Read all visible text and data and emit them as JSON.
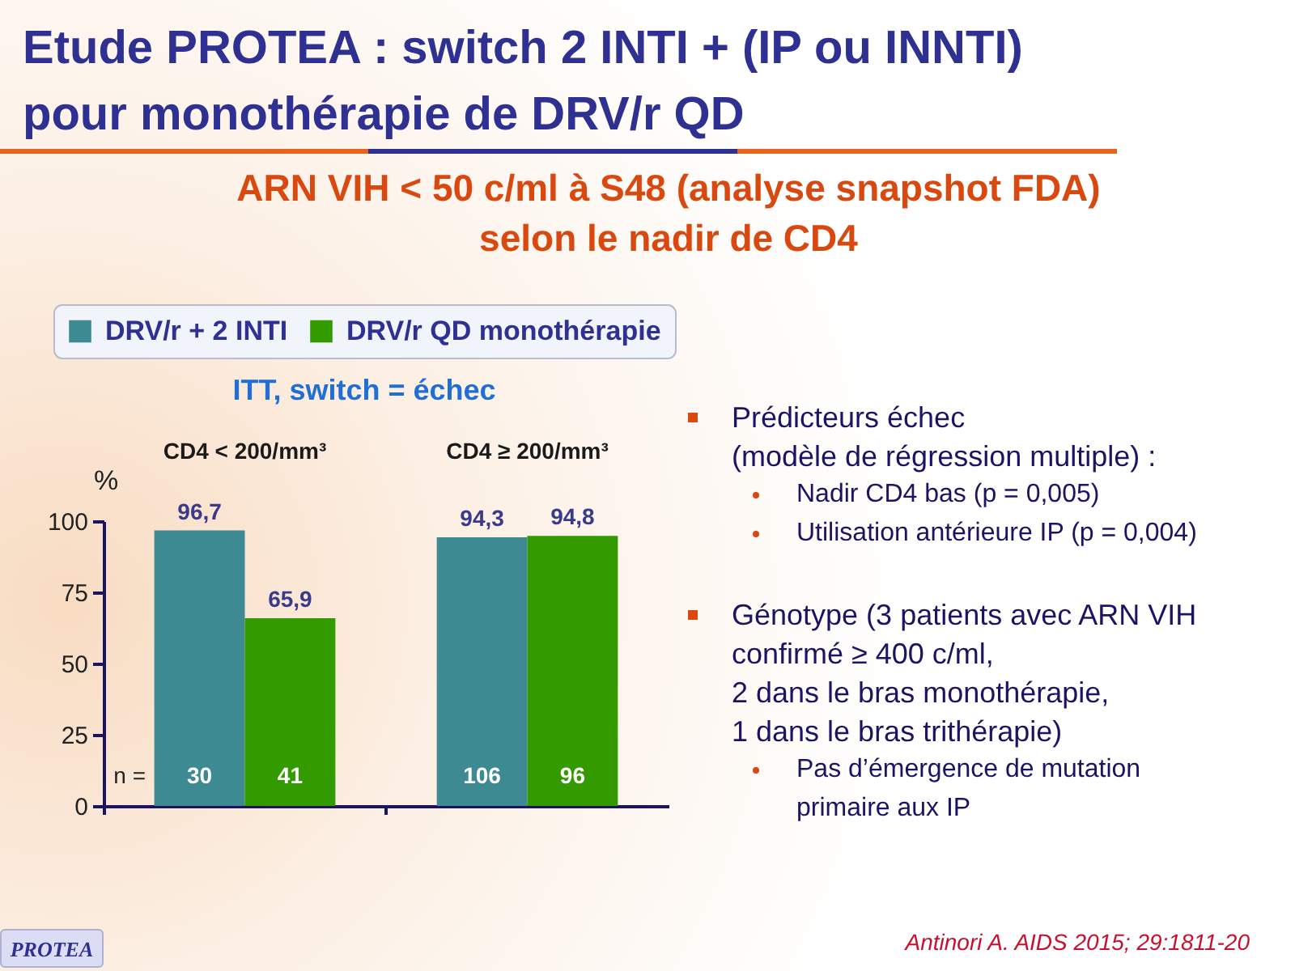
{
  "chart_data": {
    "type": "bar",
    "title": "Etude PROTEA : switch 2 INTI + (IP ou INNTI) pour monothérapie de DRV/r QD",
    "subtitle": "ARN VIH < 50 c/ml à S48 (analyse snapshot FDA) selon le nadir de CD4",
    "ylabel": "%",
    "categories": [
      "CD4 < 200/mm³",
      "CD4 ≥ 200/mm³"
    ],
    "series": [
      {
        "name": "DRV/r + 2 INTI",
        "color": "#3e8a92",
        "values": [
          96.7,
          94.3
        ],
        "value_labels": [
          "96,7",
          "94,3"
        ]
      },
      {
        "name": "DRV/r QD monothérapie",
        "color": "#339a00",
        "values": [
          65.9,
          94.8
        ],
        "value_labels": [
          "65,9",
          "94,8"
        ]
      }
    ],
    "ylim": [
      0,
      100
    ],
    "yticks": [
      0,
      25,
      50,
      75,
      100
    ],
    "grid": false,
    "legend": "top left",
    "annotations": [
      "ITT, switch = échec",
      "n =",
      "30",
      "41",
      "106",
      "96",
      "Prédicteurs échec\n(modèle de régression multiple) :",
      "Nadir CD4 bas (p = 0,005)",
      "Utilisation antérieure IP (p = 0,004)",
      "Génotype (3 patients avec ARN VIH\nconfirmé ≥ 400 c/ml,\n2 dans le bras monothérapie,\n1 dans le bras trithérapie)",
      "Pas d’émergence de mutation\nprimaire aux IP",
      "Antinori A. AIDS 2015; 29:1811-20",
      "PROTEA"
    ]
  }
}
